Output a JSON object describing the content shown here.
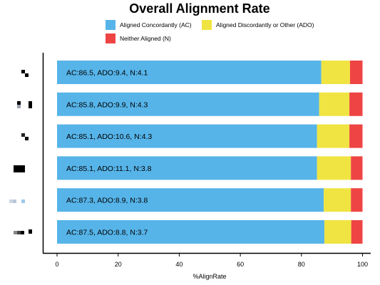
{
  "chart_data": {
    "type": "bar",
    "orientation": "horizontal",
    "stacked": true,
    "title": "Overall Alignment Rate",
    "xlabel": "%AlignRate",
    "ylabel": "",
    "xlim": [
      0,
      100
    ],
    "xticks": [
      "0",
      "20",
      "40",
      "60",
      "80",
      "100"
    ],
    "legend_position": "top",
    "grid": false,
    "colors": {
      "AC": "#56B4E9",
      "ADO": "#F0E442",
      "N": "#EF4444"
    },
    "legend": [
      {
        "key": "AC",
        "label": "Aligned Concordantly (AC)"
      },
      {
        "key": "ADO",
        "label": "Aligned Discordantly or Other (ADO)"
      },
      {
        "key": "N",
        "label": "Neither Aligned (N)"
      }
    ],
    "categories_obscured": true,
    "series": [
      {
        "AC": 86.5,
        "ADO": 9.4,
        "N": 4.1,
        "label": "AC:86.5, ADO:9.4, N:4.1"
      },
      {
        "AC": 85.8,
        "ADO": 9.9,
        "N": 4.3,
        "label": "AC:85.8, ADO:9.9, N:4.3"
      },
      {
        "AC": 85.1,
        "ADO": 10.6,
        "N": 4.3,
        "label": "AC:85.1, ADO:10.6, N:4.3"
      },
      {
        "AC": 85.1,
        "ADO": 11.1,
        "N": 3.8,
        "label": "AC:85.1, ADO:11.1, N:3.8"
      },
      {
        "AC": 87.3,
        "ADO": 8.9,
        "N": 3.8,
        "label": "AC:87.3, ADO:8.9, N:3.8"
      },
      {
        "AC": 87.5,
        "ADO": 8.8,
        "N": 3.7,
        "label": "AC:87.5, ADO:8.8, N:3.7"
      }
    ]
  }
}
